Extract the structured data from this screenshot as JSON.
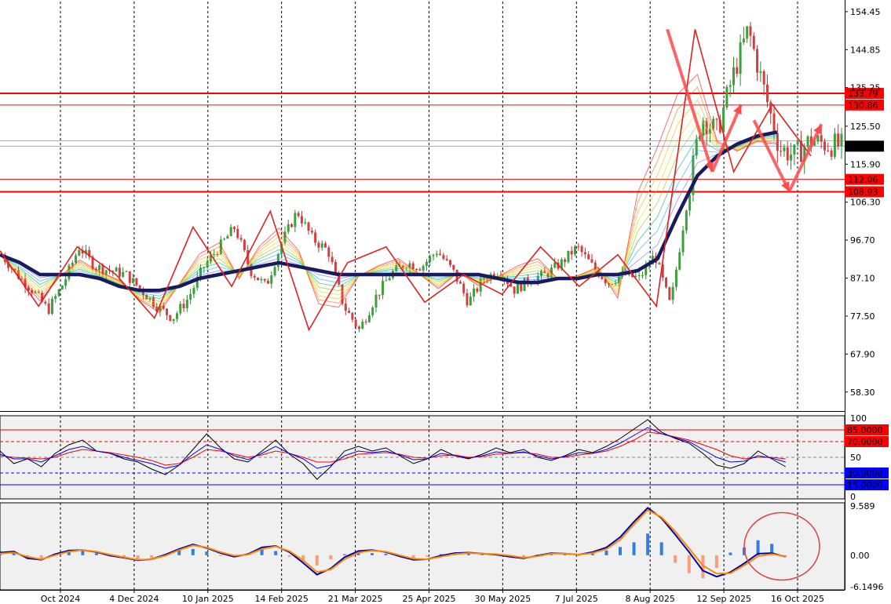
{
  "chart_data": [
    {
      "type": "candlestick",
      "title": "",
      "x_tick_labels": [
        "Oct 2024",
        "4 Dec 2024",
        "10 Jan 2025",
        "14 Feb 2025",
        "21 Mar 2025",
        "25 Apr 2025",
        "30 May 2025",
        "7 Jul 2025",
        "8 Aug 2025",
        "12 Sep 2025",
        "16 Oct 2025"
      ],
      "y_tick_labels": [
        "154.45",
        "144.85",
        "135.25",
        "125.50",
        "115.90",
        "106.30",
        "96.70",
        "87.10",
        "77.50",
        "67.90",
        "58.30"
      ],
      "ylim": [
        53.5,
        157.0
      ],
      "last_price": "120.45",
      "price_path": [
        [
          "Oct 2024",
          93
        ],
        [
          null,
          88
        ],
        [
          null,
          84
        ],
        [
          null,
          79
        ],
        [
          null,
          86
        ],
        [
          null,
          95
        ],
        [
          null,
          90
        ],
        [
          "4 Dec 2024",
          89
        ],
        [
          null,
          88
        ],
        [
          null,
          84
        ],
        [
          null,
          80
        ],
        [
          "10 Jan 2025",
          77
        ],
        [
          null,
          82
        ],
        [
          null,
          90
        ],
        [
          null,
          95
        ],
        [
          null,
          100
        ],
        [
          "14 Feb 2025",
          89
        ],
        [
          null,
          85
        ],
        [
          null,
          96
        ],
        [
          null,
          104
        ],
        [
          null,
          97
        ],
        [
          "21 Mar 2025",
          94
        ],
        [
          null,
          80
        ],
        [
          null,
          74
        ],
        [
          null,
          82
        ],
        [
          null,
          88
        ],
        [
          "25 Apr 2025",
          91
        ],
        [
          null,
          90
        ],
        [
          null,
          94
        ],
        [
          null,
          89
        ],
        [
          "30 May 2025",
          81
        ],
        [
          null,
          87
        ],
        [
          null,
          89
        ],
        [
          null,
          84
        ],
        [
          null,
          87
        ],
        [
          "7 Jul 2025",
          88
        ],
        [
          null,
          91
        ],
        [
          null,
          95
        ],
        [
          null,
          90
        ],
        [
          null,
          86
        ],
        [
          "8 Aug 2025",
          88
        ],
        [
          null,
          87
        ],
        [
          null,
          93
        ],
        [
          null,
          80
        ],
        [
          null,
          105
        ],
        [
          null,
          128
        ],
        [
          "12 Sep 2025",
          124
        ],
        [
          null,
          138
        ],
        [
          null,
          150
        ],
        [
          null,
          135
        ],
        [
          null,
          120
        ],
        [
          null,
          118
        ],
        [
          "16 Oct 2025",
          122
        ],
        [
          null,
          121
        ],
        [
          null,
          120.45
        ]
      ],
      "moving_average": [
        93,
        91,
        88,
        88,
        88,
        87,
        85,
        84,
        84,
        85,
        87,
        88,
        89,
        90,
        91,
        90,
        89,
        88,
        88,
        88,
        88,
        88,
        88,
        88,
        88,
        87,
        86,
        86,
        87,
        87,
        88,
        88,
        89,
        92,
        103,
        113,
        118,
        121,
        123,
        124
      ],
      "zigzag": [
        [
          "Oct 2024",
          94
        ],
        [
          null,
          80
        ],
        [
          null,
          95
        ],
        [
          "4 Dec 2024",
          88
        ],
        [
          null,
          77
        ],
        [
          null,
          100
        ],
        [
          "14 Feb 2025",
          85
        ],
        [
          null,
          104
        ],
        [
          null,
          74
        ],
        [
          null,
          91
        ],
        [
          null,
          95
        ],
        [
          "30 May 2025",
          81
        ],
        [
          null,
          88
        ],
        [
          null,
          83
        ],
        [
          null,
          95
        ],
        [
          "8 Aug 2025",
          85
        ],
        [
          null,
          93
        ],
        [
          null,
          80
        ],
        [
          null,
          150
        ],
        [
          null,
          114
        ],
        [
          null,
          131
        ],
        [
          null,
          118
        ]
      ],
      "horizontal_levels": [
        {
          "value": 133.79,
          "label": "133.79",
          "color": "#ff0000",
          "weight": "bold"
        },
        {
          "value": 130.86,
          "label": "130.86",
          "color": "#ff0000",
          "weight": "normal"
        },
        {
          "value": 121.8,
          "label": "",
          "color": "#ff9966",
          "weight": "normal"
        },
        {
          "value": 120.45,
          "label": "120.45",
          "color": "#000000",
          "weight": "price"
        },
        {
          "value": 112.06,
          "label": "112.06",
          "color": "#ff0000",
          "weight": "normal"
        },
        {
          "value": 108.93,
          "label": "108.93",
          "color": "#ff0000",
          "weight": "bold"
        }
      ],
      "projection_arrows": [
        [
          [
            null,
            150
          ],
          [
            null,
            114
          ]
        ],
        [
          [
            null,
            114
          ],
          [
            null,
            131
          ]
        ],
        [
          [
            null,
            127
          ],
          [
            null,
            109
          ]
        ],
        [
          [
            null,
            109
          ],
          [
            null,
            126
          ]
        ]
      ],
      "grid": true
    },
    {
      "type": "line",
      "title": "",
      "y_tick_labels": [
        "100",
        "50",
        "0"
      ],
      "ylim": [
        0,
        100
      ],
      "levels": [
        {
          "value": 85,
          "label": "85.0000",
          "color": "#ff0000"
        },
        {
          "value": 70,
          "label": "70.0000",
          "color": "#ff0000"
        },
        {
          "value": 50,
          "label": "",
          "color": "#888888"
        },
        {
          "value": 30,
          "label": "30.0000",
          "color": "#0000ff"
        },
        {
          "value": 15,
          "label": "15.0000",
          "color": "#0000ff"
        }
      ],
      "series": [
        {
          "color": "#000000",
          "values": [
            58,
            42,
            48,
            38,
            55,
            66,
            72,
            58,
            55,
            48,
            44,
            35,
            28,
            40,
            60,
            80,
            62,
            48,
            44,
            58,
            72,
            54,
            42,
            22,
            38,
            58,
            64,
            58,
            62,
            52,
            42,
            48,
            60,
            52,
            48,
            54,
            62,
            56,
            60,
            50,
            46,
            52,
            60,
            56,
            64,
            74,
            86,
            98,
            82,
            74,
            68,
            55,
            40,
            36,
            42,
            58,
            48,
            38
          ]
        },
        {
          "color": "#ff0000",
          "values": [
            52,
            50,
            49,
            48,
            50,
            56,
            60,
            58,
            56,
            53,
            50,
            46,
            40,
            42,
            50,
            60,
            58,
            54,
            50,
            53,
            58,
            55,
            50,
            44,
            44,
            48,
            54,
            55,
            56,
            54,
            50,
            49,
            52,
            53,
            50,
            51,
            54,
            55,
            56,
            54,
            50,
            50,
            53,
            55,
            58,
            64,
            72,
            82,
            80,
            76,
            72,
            66,
            60,
            52,
            48,
            50,
            50,
            48
          ]
        },
        {
          "color": "#0000ff",
          "values": [
            54,
            48,
            48,
            44,
            52,
            60,
            64,
            58,
            55,
            50,
            46,
            42,
            36,
            40,
            54,
            66,
            60,
            52,
            47,
            55,
            64,
            55,
            48,
            36,
            40,
            52,
            58,
            56,
            58,
            53,
            47,
            48,
            55,
            52,
            49,
            52,
            57,
            55,
            57,
            52,
            48,
            51,
            56,
            55,
            60,
            68,
            78,
            88,
            80,
            75,
            70,
            60,
            50,
            44,
            45,
            52,
            49,
            44
          ]
        }
      ],
      "grid": true
    },
    {
      "type": "bar",
      "title": "",
      "y_tick_labels": [
        "9.589",
        "0.00",
        "-6.1496"
      ],
      "ylim": [
        -6.1496,
        9.589
      ],
      "histogram": [
        0.8,
        0.4,
        -0.8,
        -1.0,
        0.3,
        1.0,
        0.9,
        0.4,
        -0.2,
        -0.6,
        -0.9,
        -0.6,
        0.2,
        1.0,
        1.2,
        0.7,
        -0.1,
        -0.4,
        0.3,
        1.1,
        0.8,
        -0.3,
        -1.2,
        -2.0,
        -0.8,
        0.2,
        0.5,
        0.4,
        0.3,
        -0.2,
        -0.6,
        -0.3,
        0.2,
        0.4,
        0.3,
        0.2,
        0.1,
        -0.2,
        -0.4,
        0.1,
        0.3,
        0.2,
        -0.1,
        0.4,
        0.9,
        1.6,
        2.5,
        4.2,
        2.5,
        -1.5,
        -3.5,
        -4.5,
        -2.5,
        0.5,
        1.5,
        2.9,
        2.2,
        -0.3
      ],
      "series": [
        {
          "color": "#0000aa",
          "values": [
            0.5,
            0.7,
            -0.6,
            -0.9,
            0.2,
            0.9,
            1.0,
            0.6,
            -0.1,
            -0.5,
            -1.0,
            -0.8,
            0.1,
            1.2,
            2.1,
            1.4,
            0.4,
            -0.3,
            0.2,
            1.5,
            1.8,
            0.6,
            -1.5,
            -3.8,
            -2.6,
            -0.4,
            0.8,
            1.0,
            0.6,
            -0.2,
            -0.9,
            -0.8,
            -0.1,
            0.4,
            0.5,
            0.3,
            0.1,
            -0.3,
            -0.6,
            -0.1,
            0.4,
            0.3,
            0.1,
            0.6,
            1.5,
            3.5,
            6.5,
            9.2,
            7.2,
            4.0,
            0.6,
            -3.0,
            -4.2,
            -3.3,
            -1.6,
            0.3,
            0.4,
            -0.3
          ]
        },
        {
          "color": "#ff8800",
          "values": [
            0.3,
            0.5,
            -0.3,
            -0.8,
            0.0,
            0.7,
            1.0,
            0.7,
            0.1,
            -0.4,
            -0.9,
            -0.8,
            -0.1,
            1.0,
            1.9,
            1.5,
            0.6,
            -0.1,
            0.1,
            1.2,
            1.7,
            0.8,
            -1.0,
            -3.3,
            -2.8,
            -0.8,
            0.5,
            0.9,
            0.7,
            0.0,
            -0.7,
            -0.8,
            -0.3,
            0.2,
            0.4,
            0.3,
            0.2,
            -0.1,
            -0.5,
            -0.2,
            0.3,
            0.3,
            0.1,
            0.4,
            1.2,
            3.0,
            6.0,
            8.8,
            7.4,
            4.6,
            1.3,
            -2.0,
            -3.6,
            -3.5,
            -2.0,
            -0.2,
            0.2,
            -0.2
          ]
        }
      ],
      "grid": true
    }
  ]
}
